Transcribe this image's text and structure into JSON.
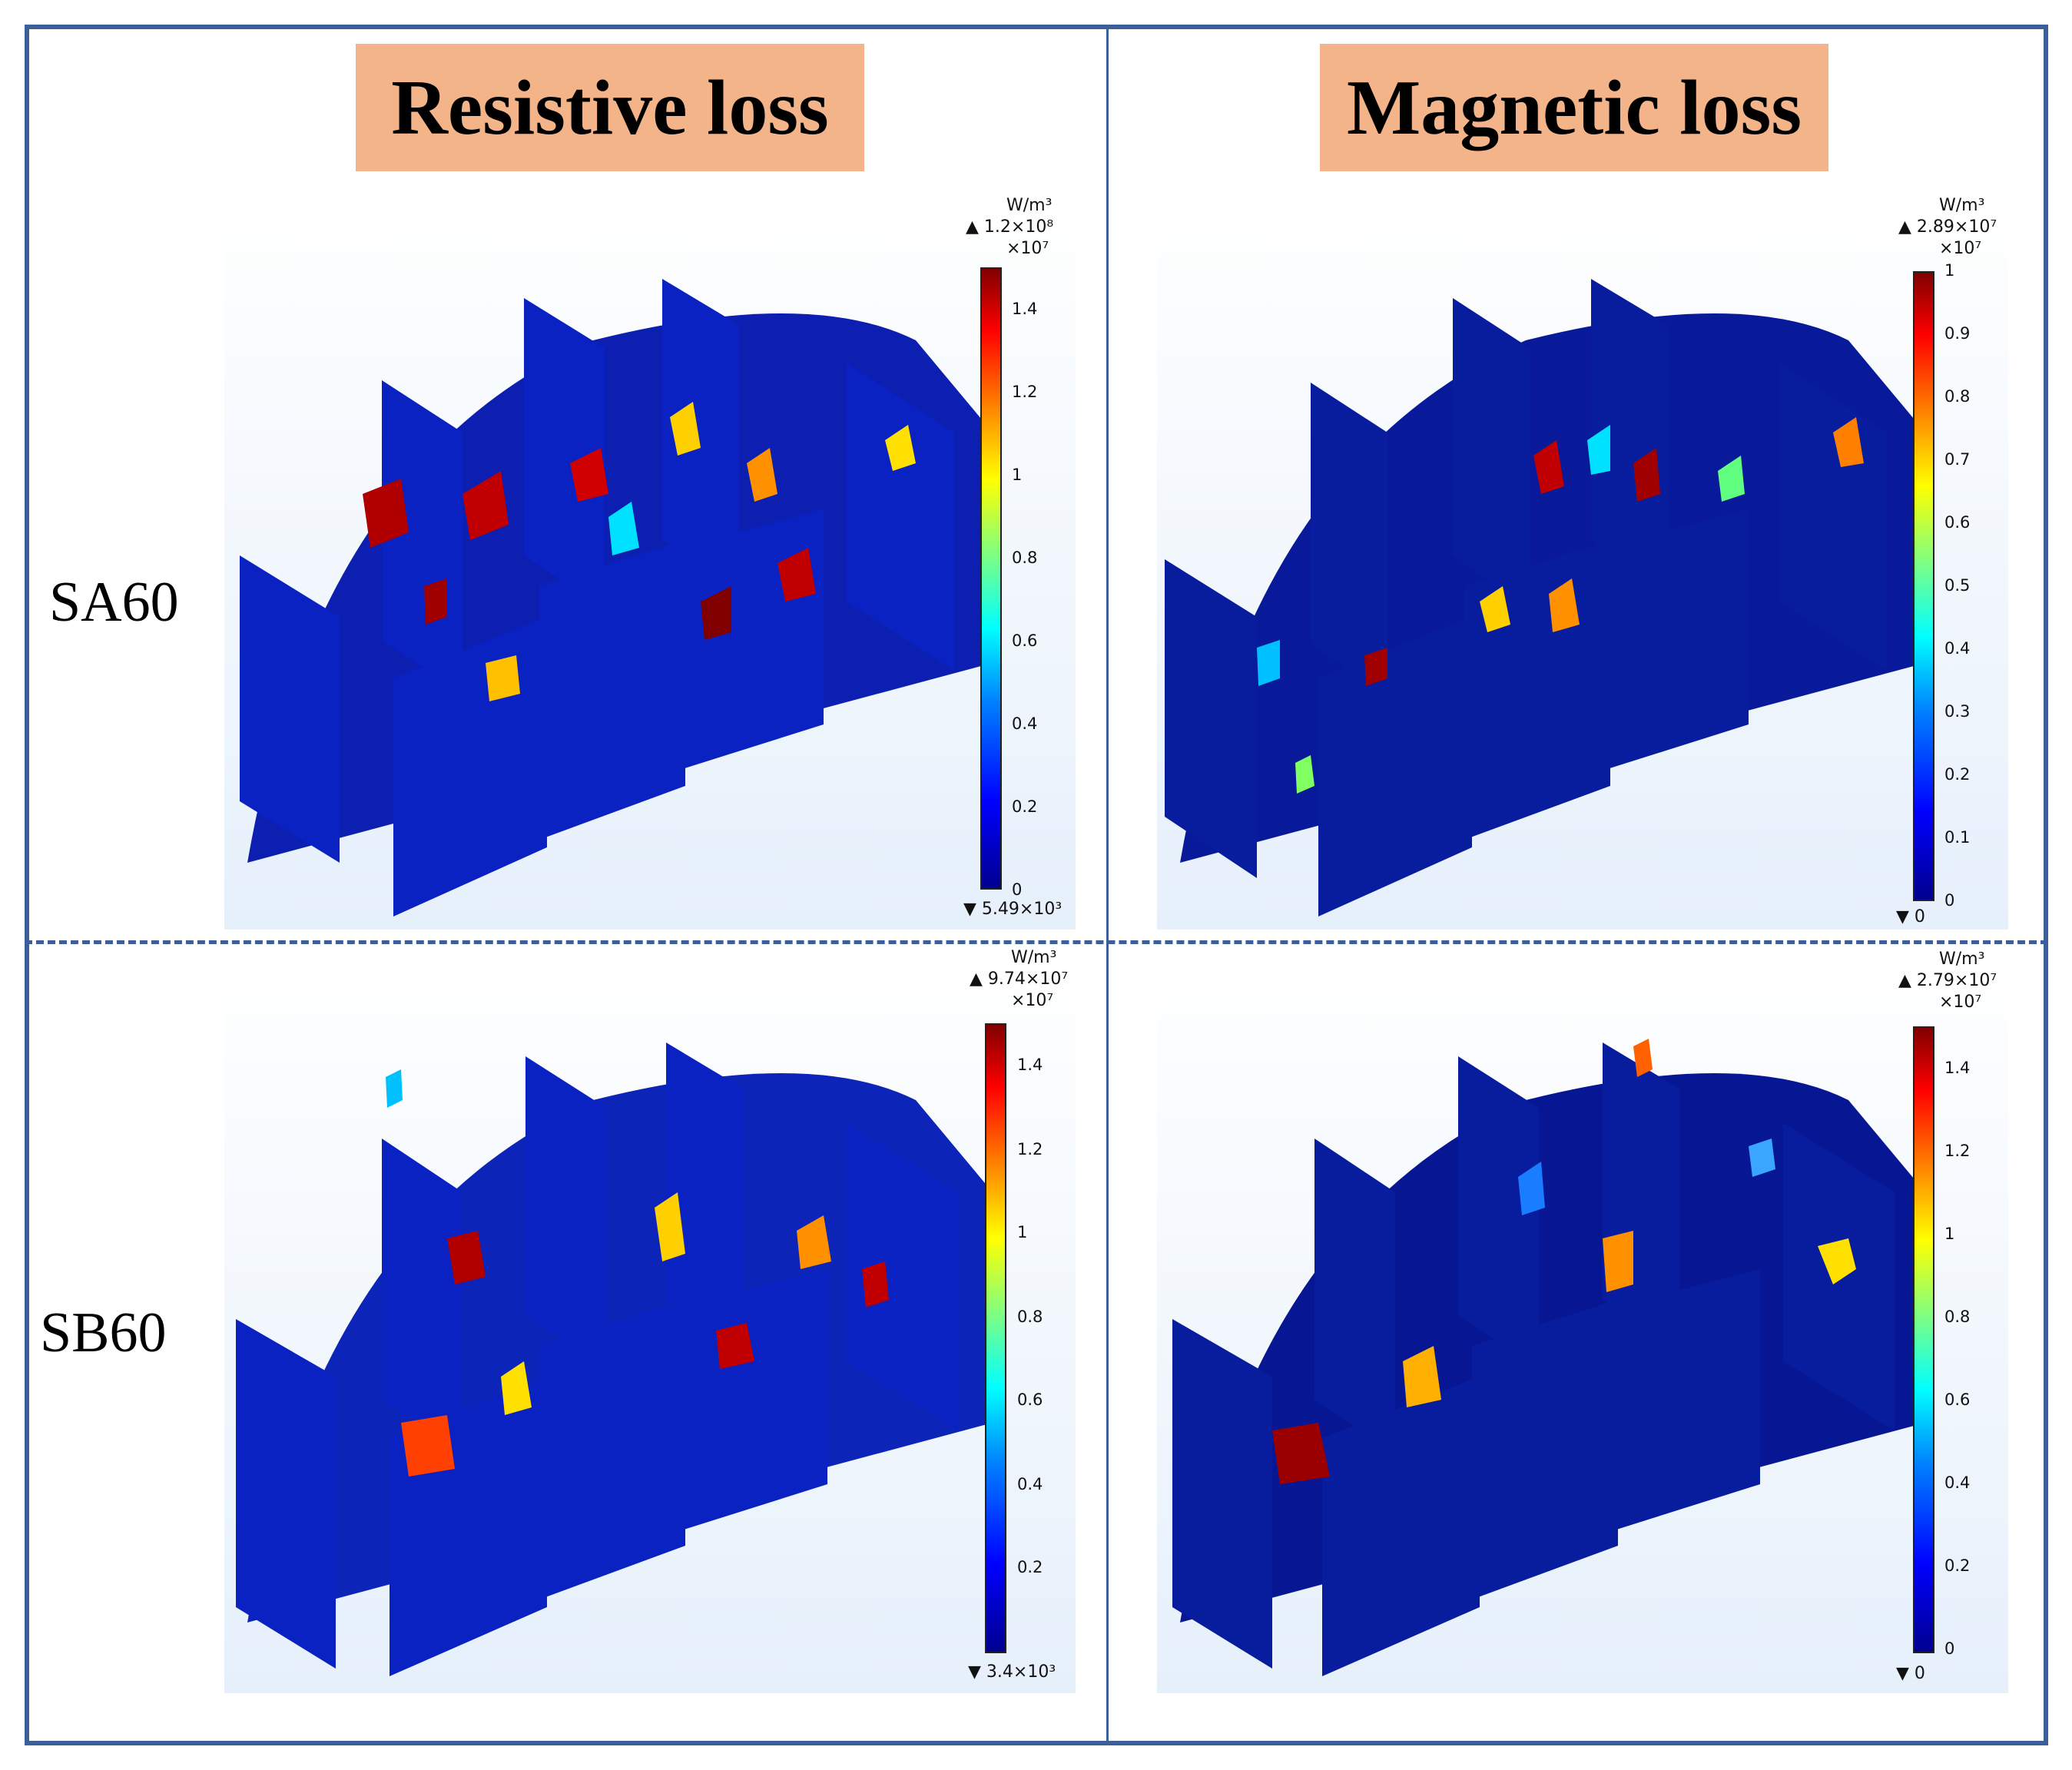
{
  "columns": {
    "left": "Resistive loss",
    "right": "Magnetic loss"
  },
  "rows": {
    "top": "SA60",
    "bottom": "SB60"
  },
  "panels": {
    "sa_resistive": {
      "unit": "W/m³",
      "max": "▲ 1.2×10⁸",
      "scale": "×10⁷",
      "min": "▼ 5.49×10³",
      "ticks": [
        "1.4",
        "1.2",
        "1",
        "0.8",
        "0.6",
        "0.4",
        "0.2",
        "0"
      ]
    },
    "sa_magnetic": {
      "unit": "W/m³",
      "max": "▲ 2.89×10⁷",
      "scale": "×10⁷",
      "min": "▼ 0",
      "ticks": [
        "1",
        "0.9",
        "0.8",
        "0.7",
        "0.6",
        "0.5",
        "0.4",
        "0.3",
        "0.2",
        "0.1",
        "0"
      ]
    },
    "sb_resistive": {
      "unit": "W/m³",
      "max": "▲ 9.74×10⁷",
      "scale": "×10⁷",
      "min": "▼ 3.4×10³",
      "ticks": [
        "1.4",
        "1.2",
        "1",
        "0.8",
        "0.6",
        "0.4",
        "0.2"
      ]
    },
    "sb_magnetic": {
      "unit": "W/m³",
      "max": "▲ 2.79×10⁷",
      "scale": "×10⁷",
      "min": "▼ 0",
      "ticks": [
        "1.4",
        "1.2",
        "1",
        "0.8",
        "0.6",
        "0.4",
        "0.2",
        "0"
      ]
    }
  },
  "colors": {
    "frame": "#3d5f99",
    "header_bg": "#f3b48a",
    "mesh_dark": "#0a1a9e",
    "mesh_mid": "#1030c8"
  }
}
